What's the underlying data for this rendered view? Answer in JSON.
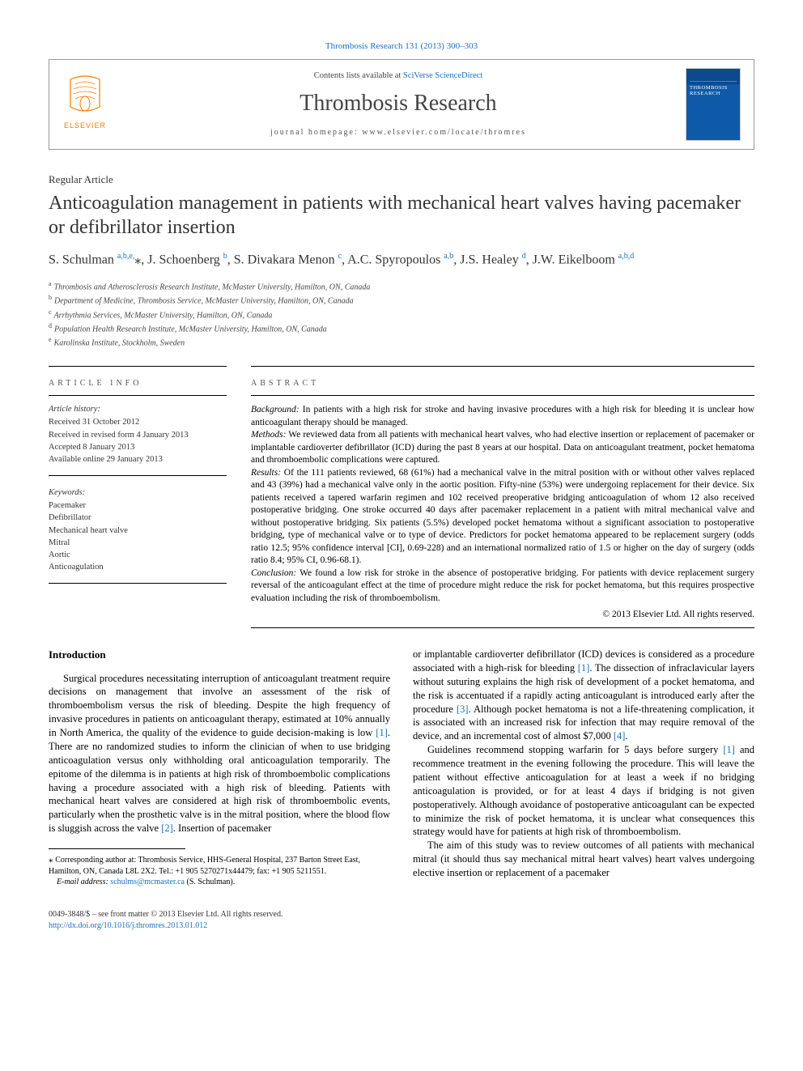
{
  "citation": "Thrombosis Research 131 (2013) 300–303",
  "header": {
    "contents_prefix": "Contents lists available at ",
    "contents_link": "SciVerse ScienceDirect",
    "journal": "Thrombosis Research",
    "homepage_label": "journal homepage: ",
    "homepage_url": "www.elsevier.com/locate/thromres",
    "publisher": "ELSEVIER",
    "cover_title": "THROMBOSIS RESEARCH"
  },
  "article_type": "Regular Article",
  "title": "Anticoagulation management in patients with mechanical heart valves having pacemaker or defibrillator insertion",
  "authors_html": "S. Schulman <sup>a,b,e,</sup><span class='star'>⁎</span>, J. Schoenberg <sup>b</sup>, S. Divakara Menon <sup>c</sup>, A.C. Spyropoulos <sup>a,b</sup>, J.S. Healey <sup>d</sup>, J.W. Eikelboom <sup>a,b,d</sup>",
  "affiliations": [
    {
      "sup": "a",
      "text": "Thrombosis and Atherosclerosis Research Institute, McMaster University, Hamilton, ON, Canada"
    },
    {
      "sup": "b",
      "text": "Department of Medicine, Thrombosis Service, McMaster University, Hamilton, ON, Canada"
    },
    {
      "sup": "c",
      "text": "Arrhythmia Services, McMaster University, Hamilton, ON, Canada"
    },
    {
      "sup": "d",
      "text": "Population Health Research Institute, McMaster University, Hamilton, ON, Canada"
    },
    {
      "sup": "e",
      "text": "Karolinska Institute, Stockholm, Sweden"
    }
  ],
  "info_heading": "ARTICLE INFO",
  "abstract_heading": "ABSTRACT",
  "history_label": "Article history:",
  "history": [
    "Received 31 October 2012",
    "Received in revised form 4 January 2013",
    "Accepted 8 January 2013",
    "Available online 29 January 2013"
  ],
  "keywords_label": "Keywords:",
  "keywords": [
    "Pacemaker",
    "Defibrillator",
    "Mechanical heart valve",
    "Mitral",
    "Aortic",
    "Anticoagulation"
  ],
  "abstract": {
    "background_label": "Background:",
    "background": " In patients with a high risk for stroke and having invasive procedures with a high risk for bleeding it is unclear how anticoagulant therapy should be managed.",
    "methods_label": "Methods:",
    "methods": " We reviewed data from all patients with mechanical heart valves, who had elective insertion or replacement of pacemaker or implantable cardioverter defibrillator (ICD) during the past 8 years at our hospital. Data on anticoagulant treatment, pocket hematoma and thromboembolic complications were captured.",
    "results_label": "Results:",
    "results": " Of the 111 patients reviewed, 68 (61%) had a mechanical valve in the mitral position with or without other valves replaced and 43 (39%) had a mechanical valve only in the aortic position. Fifty-nine (53%) were undergoing replacement for their device. Six patients received a tapered warfarin regimen and 102 received preoperative bridging anticoagulation of whom 12 also received postoperative bridging. One stroke occurred 40 days after pacemaker replacement in a patient with mitral mechanical valve and without postoperative bridging. Six patients (5.5%) developed pocket hematoma without a significant association to postoperative bridging, type of mechanical valve or to type of device. Predictors for pocket hematoma appeared to be replacement surgery (odds ratio 12.5; 95% confidence interval [CI], 0.69-228) and an international normalized ratio of 1.5 or higher on the day of surgery (odds ratio 8.4; 95% CI, 0.96-68.1).",
    "conclusion_label": "Conclusion:",
    "conclusion": " We found a low risk for stroke in the absence of postoperative bridging. For patients with device replacement surgery reversal of the anticoagulant effect at the time of procedure might reduce the risk for pocket hematoma, but this requires prospective evaluation including the risk of thromboembolism."
  },
  "copyright": "© 2013 Elsevier Ltd. All rights reserved.",
  "intro_heading": "Introduction",
  "intro_col1_html": "Surgical procedures necessitating interruption of anticoagulant treatment require decisions on management that involve an assessment of the risk of thromboembolism versus the risk of bleeding. Despite the high frequency of invasive procedures in patients on anticoagulant therapy, estimated at 10% annually in North America, the quality of the evidence to guide decision-making is low <span class='ref'>[1]</span>. There are no randomized studies to inform the clinician of when to use bridging anticoagulation versus only withholding oral anticoagulation temporarily. The epitome of the dilemma is in patients at high risk of thromboembolic complications having a procedure associated with a high risk of bleeding. Patients with mechanical heart valves are considered at high risk of thromboembolic events, particularly when the prosthetic valve is in the mitral position, where the blood flow is sluggish across the valve <span class='ref'>[2]</span>. Insertion of pacemaker",
  "intro_col2_p1_html": "or implantable cardioverter defibrillator (ICD) devices is considered as a procedure associated with a high-risk for bleeding <span class='ref'>[1]</span>. The dissection of infraclavicular layers without suturing explains the high risk of development of a pocket hematoma, and the risk is accentuated if a rapidly acting anticoagulant is introduced early after the procedure <span class='ref'>[3]</span>. Although pocket hematoma is not a life-threatening complication, it is associated with an increased risk for infection that may require removal of the device, and an incremental cost of almost $7,000 <span class='ref'>[4]</span>.",
  "intro_col2_p2_html": "Guidelines recommend stopping warfarin for 5 days before surgery <span class='ref'>[1]</span> and recommence treatment in the evening following the procedure. This will leave the patient without effective anticoagulation for at least a week if no bridging anticoagulation is provided, or for at least 4 days if bridging is not given postoperatively. Although avoidance of postoperative anticoagulant can be expected to minimize the risk of pocket hematoma, it is unclear what consequences this strategy would have for patients at high risk of thromboembolism.",
  "intro_col2_p3_html": "The aim of this study was to review outcomes of all patients with mechanical mitral (it should thus say mechanical mitral heart valves) heart valves undergoing elective insertion or replacement of a pacemaker",
  "footnote": {
    "corresponding": "Corresponding author at: Thrombosis Service, HHS-General Hospital, 237 Barton Street East, Hamilton, ON, Canada L8L 2X2. Tel.: +1 905 5270271x44479; fax: +1 905 5211551.",
    "email_label": "E-mail address:",
    "email": "schulms@mcmaster.ca",
    "email_suffix": "(S. Schulman)."
  },
  "bottom": {
    "issn_line": "0049-3848/$ – see front matter © 2013 Elsevier Ltd. All rights reserved.",
    "doi": "http://dx.doi.org/10.1016/j.thromres.2013.01.012"
  },
  "colors": {
    "link": "#1a6fc4",
    "elsevier_orange": "#ff7a00",
    "text": "#000000",
    "grey": "#555555"
  }
}
